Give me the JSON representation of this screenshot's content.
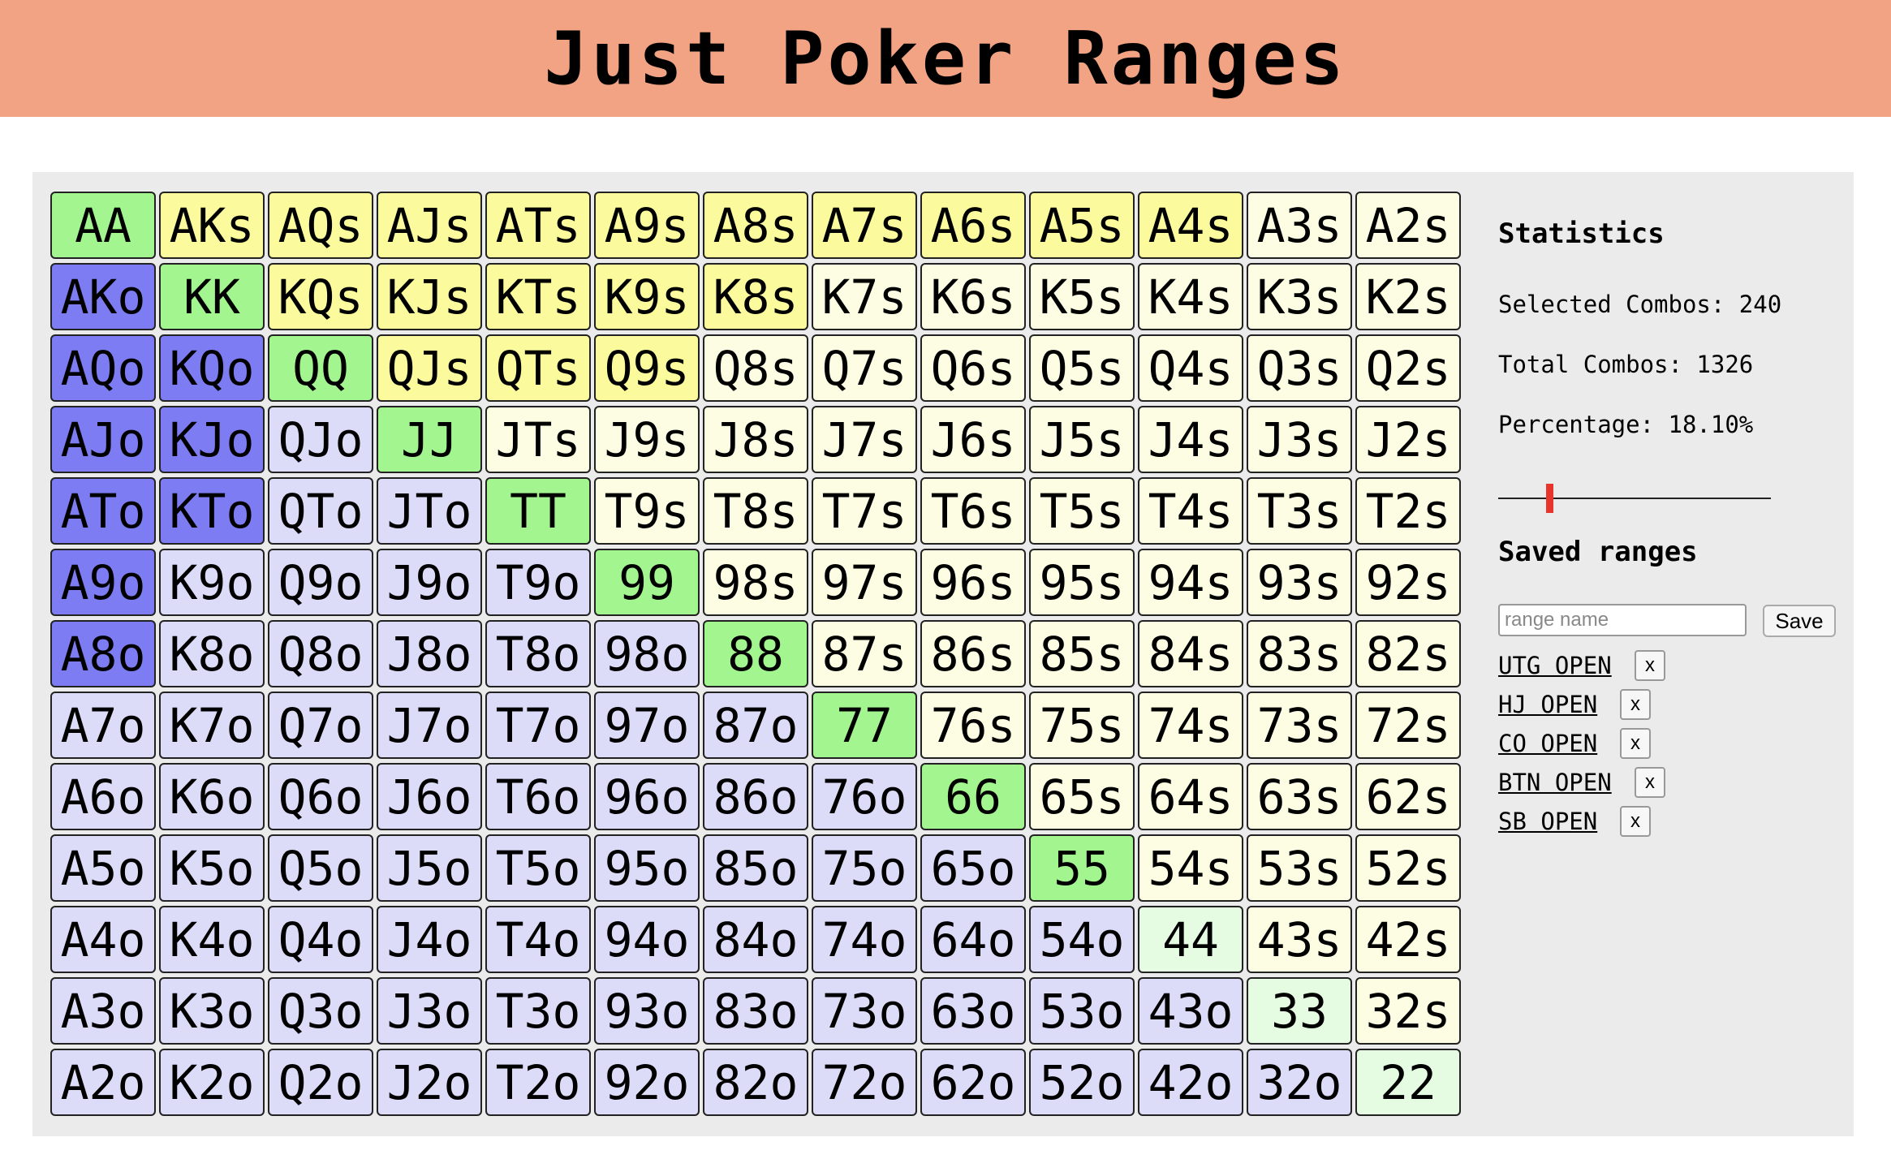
{
  "header": {
    "title": "Just Poker Ranges"
  },
  "grid": {
    "ranks": [
      "A",
      "K",
      "Q",
      "J",
      "T",
      "9",
      "8",
      "7",
      "6",
      "5",
      "4",
      "3",
      "2"
    ],
    "selected_hands": [
      "AA",
      "KK",
      "QQ",
      "JJ",
      "TT",
      "99",
      "88",
      "77",
      "66",
      "55",
      "AKs",
      "AQs",
      "AJs",
      "ATs",
      "A9s",
      "A8s",
      "A7s",
      "A6s",
      "A5s",
      "A4s",
      "KQs",
      "KJs",
      "KTs",
      "K9s",
      "K8s",
      "QJs",
      "QTs",
      "Q9s",
      "AKo",
      "AQo",
      "AJo",
      "ATo",
      "A9o",
      "A8o",
      "KQo",
      "KJo",
      "KTo"
    ],
    "colors": {
      "pair_selected": "#a2f58f",
      "pair": "#e5fce2",
      "suited_selected": "#fbfa9c",
      "suited": "#fdfde3",
      "offsuit_selected": "#7d7cf2",
      "offsuit": "#dcdcf8"
    }
  },
  "stats": {
    "title": "Statistics",
    "selected_combos": "Selected Combos: 240",
    "total_combos": "Total Combos: 1326",
    "percentage": "Percentage: 18.10%",
    "slider_value_percent": 18.1
  },
  "saved": {
    "title": "Saved ranges",
    "placeholder": "range name",
    "save_label": "Save",
    "delete_label": "x",
    "items": [
      "UTG OPEN",
      "HJ OPEN",
      "CO OPEN",
      "BTN OPEN",
      "SB OPEN"
    ]
  }
}
